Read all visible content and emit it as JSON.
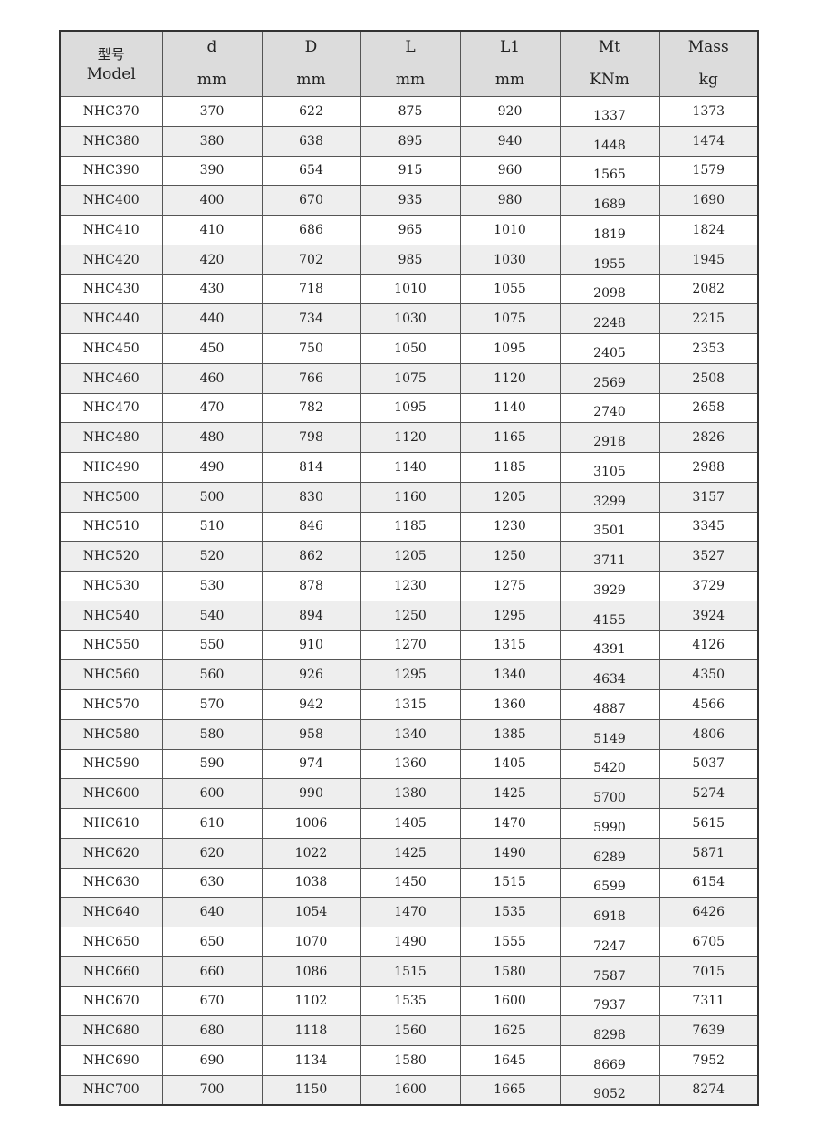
{
  "table": {
    "model_header_cn": "型号",
    "model_header_en": "Model",
    "columns": [
      {
        "name": "d",
        "unit": "mm"
      },
      {
        "name": "D",
        "unit": "mm"
      },
      {
        "name": "L",
        "unit": "mm"
      },
      {
        "name": "L1",
        "unit": "mm"
      },
      {
        "name": "Mt",
        "unit": "KNm"
      },
      {
        "name": "Mass",
        "unit": "kg"
      }
    ],
    "rows": [
      [
        "NHC370",
        "370",
        "622",
        "875",
        "920",
        "1337",
        "1373"
      ],
      [
        "NHC380",
        "380",
        "638",
        "895",
        "940",
        "1448",
        "1474"
      ],
      [
        "NHC390",
        "390",
        "654",
        "915",
        "960",
        "1565",
        "1579"
      ],
      [
        "NHC400",
        "400",
        "670",
        "935",
        "980",
        "1689",
        "1690"
      ],
      [
        "NHC410",
        "410",
        "686",
        "965",
        "1010",
        "1819",
        "1824"
      ],
      [
        "NHC420",
        "420",
        "702",
        "985",
        "1030",
        "1955",
        "1945"
      ],
      [
        "NHC430",
        "430",
        "718",
        "1010",
        "1055",
        "2098",
        "2082"
      ],
      [
        "NHC440",
        "440",
        "734",
        "1030",
        "1075",
        "2248",
        "2215"
      ],
      [
        "NHC450",
        "450",
        "750",
        "1050",
        "1095",
        "2405",
        "2353"
      ],
      [
        "NHC460",
        "460",
        "766",
        "1075",
        "1120",
        "2569",
        "2508"
      ],
      [
        "NHC470",
        "470",
        "782",
        "1095",
        "1140",
        "2740",
        "2658"
      ],
      [
        "NHC480",
        "480",
        "798",
        "1120",
        "1165",
        "2918",
        "2826"
      ],
      [
        "NHC490",
        "490",
        "814",
        "1140",
        "1185",
        "3105",
        "2988"
      ],
      [
        "NHC500",
        "500",
        "830",
        "1160",
        "1205",
        "3299",
        "3157"
      ],
      [
        "NHC510",
        "510",
        "846",
        "1185",
        "1230",
        "3501",
        "3345"
      ],
      [
        "NHC520",
        "520",
        "862",
        "1205",
        "1250",
        "3711",
        "3527"
      ],
      [
        "NHC530",
        "530",
        "878",
        "1230",
        "1275",
        "3929",
        "3729"
      ],
      [
        "NHC540",
        "540",
        "894",
        "1250",
        "1295",
        "4155",
        "3924"
      ],
      [
        "NHC550",
        "550",
        "910",
        "1270",
        "1315",
        "4391",
        "4126"
      ],
      [
        "NHC560",
        "560",
        "926",
        "1295",
        "1340",
        "4634",
        "4350"
      ],
      [
        "NHC570",
        "570",
        "942",
        "1315",
        "1360",
        "4887",
        "4566"
      ],
      [
        "NHC580",
        "580",
        "958",
        "1340",
        "1385",
        "5149",
        "4806"
      ],
      [
        "NHC590",
        "590",
        "974",
        "1360",
        "1405",
        "5420",
        "5037"
      ],
      [
        "NHC600",
        "600",
        "990",
        "1380",
        "1425",
        "5700",
        "5274"
      ],
      [
        "NHC610",
        "610",
        "1006",
        "1405",
        "1470",
        "5990",
        "5615"
      ],
      [
        "NHC620",
        "620",
        "1022",
        "1425",
        "1490",
        "6289",
        "5871"
      ],
      [
        "NHC630",
        "630",
        "1038",
        "1450",
        "1515",
        "6599",
        "6154"
      ],
      [
        "NHC640",
        "640",
        "1054",
        "1470",
        "1535",
        "6918",
        "6426"
      ],
      [
        "NHC650",
        "650",
        "1070",
        "1490",
        "1555",
        "7247",
        "6705"
      ],
      [
        "NHC660",
        "660",
        "1086",
        "1515",
        "1580",
        "7587",
        "7015"
      ],
      [
        "NHC670",
        "670",
        "1102",
        "1535",
        "1600",
        "7937",
        "7311"
      ],
      [
        "NHC680",
        "680",
        "1118",
        "1560",
        "1625",
        "8298",
        "7639"
      ],
      [
        "NHC690",
        "690",
        "1134",
        "1580",
        "1645",
        "8669",
        "7952"
      ],
      [
        "NHC700",
        "700",
        "1150",
        "1600",
        "1665",
        "9052",
        "8274"
      ]
    ]
  }
}
